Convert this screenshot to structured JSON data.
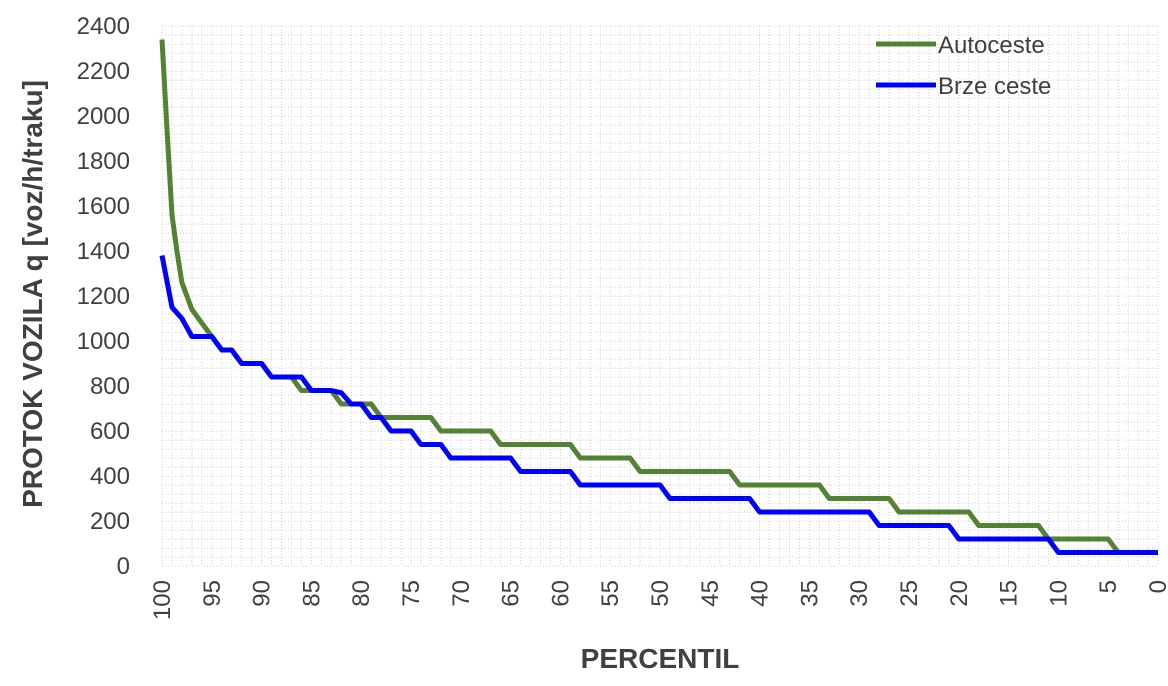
{
  "chart_data": {
    "type": "line",
    "xlabel": "PERCENTIL",
    "ylabel": "PROTOK VOZILA q [voz/h/traku]",
    "xlim": [
      100,
      0
    ],
    "ylim": [
      0,
      2400
    ],
    "x_ticks": [
      100,
      95,
      90,
      85,
      80,
      75,
      70,
      65,
      60,
      55,
      50,
      45,
      40,
      35,
      30,
      25,
      20,
      15,
      10,
      5,
      0
    ],
    "y_ticks": [
      0,
      200,
      400,
      600,
      800,
      1000,
      1200,
      1400,
      1600,
      1800,
      2000,
      2200,
      2400
    ],
    "grid": "minor dotted",
    "legend_position": "top-right",
    "series": [
      {
        "name": "Autoceste",
        "color": "#548235",
        "points": [
          [
            100,
            2340
          ],
          [
            99.5,
            1940
          ],
          [
            99,
            1560
          ],
          [
            98.5,
            1400
          ],
          [
            98,
            1260
          ],
          [
            97,
            1140
          ],
          [
            96,
            1080
          ],
          [
            95,
            1020
          ],
          [
            94,
            960
          ],
          [
            93,
            960
          ],
          [
            92,
            900
          ],
          [
            90,
            900
          ],
          [
            89,
            840
          ],
          [
            87,
            840
          ],
          [
            86,
            780
          ],
          [
            84,
            780
          ],
          [
            83,
            780
          ],
          [
            82,
            720
          ],
          [
            79,
            720
          ],
          [
            78,
            660
          ],
          [
            73,
            660
          ],
          [
            72,
            600
          ],
          [
            67,
            600
          ],
          [
            66,
            540
          ],
          [
            59,
            540
          ],
          [
            58,
            480
          ],
          [
            53,
            480
          ],
          [
            52,
            420
          ],
          [
            43,
            420
          ],
          [
            42,
            360
          ],
          [
            34,
            360
          ],
          [
            33,
            300
          ],
          [
            27,
            300
          ],
          [
            26,
            240
          ],
          [
            19,
            240
          ],
          [
            18,
            180
          ],
          [
            12,
            180
          ],
          [
            11,
            120
          ],
          [
            5,
            120
          ],
          [
            4,
            60
          ],
          [
            0,
            60
          ]
        ]
      },
      {
        "name": "Brze ceste",
        "color": "#0000ff",
        "points": [
          [
            100,
            1380
          ],
          [
            99,
            1150
          ],
          [
            98,
            1100
          ],
          [
            97,
            1020
          ],
          [
            95,
            1020
          ],
          [
            94,
            960
          ],
          [
            93,
            960
          ],
          [
            92,
            900
          ],
          [
            90,
            900
          ],
          [
            89,
            840
          ],
          [
            86,
            840
          ],
          [
            85,
            780
          ],
          [
            83,
            780
          ],
          [
            82,
            770
          ],
          [
            81,
            720
          ],
          [
            80,
            720
          ],
          [
            79,
            660
          ],
          [
            78,
            660
          ],
          [
            77,
            600
          ],
          [
            75,
            600
          ],
          [
            74,
            540
          ],
          [
            72,
            540
          ],
          [
            71,
            480
          ],
          [
            65,
            480
          ],
          [
            64,
            420
          ],
          [
            59,
            420
          ],
          [
            58,
            360
          ],
          [
            50,
            360
          ],
          [
            49,
            300
          ],
          [
            41,
            300
          ],
          [
            40,
            240
          ],
          [
            29,
            240
          ],
          [
            28,
            180
          ],
          [
            21,
            180
          ],
          [
            20,
            120
          ],
          [
            11,
            120
          ],
          [
            10,
            60
          ],
          [
            0,
            60
          ]
        ]
      }
    ]
  }
}
